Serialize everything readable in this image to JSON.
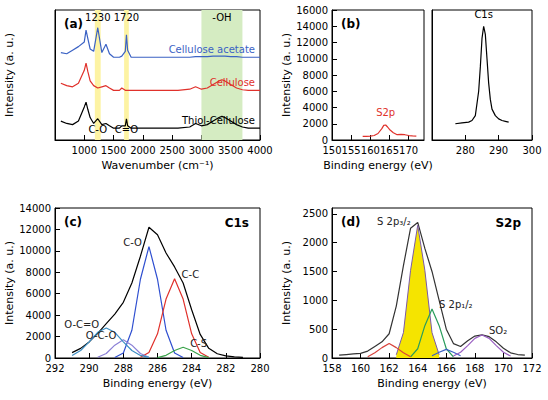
{
  "chart_data": [
    {
      "type": "line",
      "title": "(a)",
      "xlabel": "Wavenumber (cm⁻¹)",
      "ylabel": "Intensity (a. u.)",
      "x": [
        600,
        700,
        800,
        900,
        1000,
        1030,
        1060,
        1100,
        1160,
        1230,
        1300,
        1370,
        1430,
        1500,
        1600,
        1640,
        1700,
        1720,
        1740,
        1800,
        2000,
        2200,
        2400,
        2600,
        2800,
        2900,
        3000,
        3100,
        3200,
        3300,
        3350,
        3400,
        3500,
        3600,
        3700,
        3800,
        3900,
        4000
      ],
      "xlim": [
        500,
        4000
      ],
      "xticks": [
        1000,
        1500,
        2000,
        2500,
        3000,
        3500,
        4000
      ],
      "ylim": [
        0,
        11
      ],
      "tick_labels": "x",
      "grid": false,
      "bands": [
        {
          "from": 1180,
          "to": 1280,
          "label": "1230",
          "bottom_label": "C-O",
          "color": "#fdf3a3"
        },
        {
          "from": 1680,
          "to": 1760,
          "label": "1720",
          "bottom_label": "C=O",
          "color": "#fdf3a3"
        },
        {
          "from": 3000,
          "to": 3700,
          "label": "-OH",
          "color": "#d5ecc2"
        }
      ],
      "series": [
        {
          "name": "Cellulose acetate",
          "color": "#3b62c4",
          "values": [
            7.4,
            7.3,
            7.6,
            7.9,
            8.3,
            9.3,
            8.6,
            7.7,
            7.5,
            9.5,
            7.4,
            8.1,
            7.3,
            7.0,
            7.0,
            7.1,
            7.5,
            8.9,
            7.6,
            7.0,
            7.0,
            7.0,
            7.0,
            7.0,
            7.0,
            7.05,
            7.05,
            7.05,
            7.1,
            7.1,
            7.1,
            7.1,
            7.05,
            7.05,
            7.0,
            7.0,
            7.0,
            7.0
          ]
        },
        {
          "name": "Cellulose",
          "color": "#e0312b",
          "values": [
            4.8,
            4.6,
            4.5,
            4.8,
            5.9,
            6.5,
            5.8,
            5.0,
            4.6,
            4.4,
            4.5,
            4.6,
            4.4,
            4.2,
            4.2,
            4.4,
            4.2,
            4.2,
            4.2,
            4.2,
            4.2,
            4.2,
            4.2,
            4.2,
            4.3,
            4.5,
            4.3,
            4.4,
            4.7,
            5.0,
            5.1,
            5.0,
            4.7,
            4.4,
            4.25,
            4.2,
            4.2,
            4.2
          ]
        },
        {
          "name": "Thiol-Cellulose",
          "color": "#000000",
          "values": [
            1.6,
            1.4,
            1.3,
            1.6,
            2.8,
            3.2,
            2.6,
            1.9,
            1.4,
            1.8,
            1.3,
            1.4,
            1.2,
            1.0,
            1.0,
            1.2,
            1.2,
            1.8,
            1.2,
            1.0,
            1.0,
            1.0,
            1.0,
            1.0,
            1.1,
            1.4,
            1.2,
            1.3,
            1.6,
            1.9,
            2.0,
            1.9,
            1.6,
            1.3,
            1.1,
            1.0,
            1.0,
            1.0
          ]
        }
      ]
    },
    {
      "type": "line",
      "title": "(b)",
      "xlabel": "Binding energy (eV)",
      "ylabel": "Intensity (a. u.)",
      "x": [
        158,
        159,
        160,
        161,
        162,
        163,
        163.5,
        164,
        164.5,
        165,
        166,
        167,
        168,
        169,
        170,
        171,
        172
      ],
      "xlim": [
        150,
        174
      ],
      "xticks": [
        150,
        155,
        160,
        165,
        170
      ],
      "ylim": [
        0,
        16000
      ],
      "yticks": [
        0,
        2000,
        4000,
        6000,
        8000,
        10000,
        12000,
        14000,
        16000
      ],
      "grid": false,
      "series": [
        {
          "name": "S2p",
          "color": "#e0312b",
          "values": [
            450,
            450,
            480,
            550,
            800,
            1400,
            1800,
            1850,
            1600,
            1300,
            900,
            650,
            700,
            650,
            550,
            500,
            480
          ]
        }
      ]
    },
    {
      "type": "line",
      "x": [
        277,
        279,
        281,
        282,
        283,
        284,
        284.5,
        285,
        285.5,
        286,
        286.5,
        287,
        287.5,
        288,
        289,
        290,
        291,
        292,
        293
      ],
      "xlim": [
        270,
        300
      ],
      "xticks": [
        280,
        290,
        300
      ],
      "ylim": [
        0,
        16000
      ],
      "tick_labels": "x",
      "grid": false,
      "series": [
        {
          "name": "C1s",
          "color": "#000000",
          "values": [
            2000,
            2100,
            2200,
            2400,
            3000,
            6000,
            9000,
            12500,
            14000,
            13000,
            10000,
            7000,
            5000,
            3800,
            3000,
            2600,
            2400,
            2300,
            2200
          ]
        }
      ]
    },
    {
      "type": "line",
      "title": "(c)",
      "subtitle": "C1s",
      "xlabel": "Binding energy (eV)",
      "ylabel": "Intensity (a. u.)",
      "x": [
        281,
        281.5,
        282,
        282.5,
        283,
        283.5,
        284,
        284.5,
        285,
        285.5,
        286,
        286.5,
        287,
        287.5,
        288,
        288.5,
        289,
        289.5,
        290,
        290.5,
        291
      ],
      "xlim": [
        292,
        280
      ],
      "xticks": [
        292,
        290,
        288,
        286,
        284,
        282,
        280
      ],
      "ylim": [
        0,
        14000
      ],
      "yticks": [
        0,
        2000,
        4000,
        6000,
        8000,
        10000,
        12000,
        14000
      ],
      "grid": false,
      "series": [
        {
          "color": "#000000",
          "values": [
            50,
            100,
            200,
            400,
            900,
            2200,
            4500,
            7000,
            8500,
            9800,
            11500,
            12200,
            9500,
            7000,
            5200,
            4100,
            3200,
            2300,
            1500,
            900,
            500
          ]
        },
        {
          "name": "C-O",
          "color": "#2f4fd0",
          "values": [
            null,
            null,
            null,
            null,
            null,
            null,
            null,
            40,
            460,
            2590,
            7350,
            10400,
            7350,
            2590,
            460,
            40,
            null,
            null,
            null,
            null,
            null
          ]
        },
        {
          "name": "C-C",
          "color": "#e0312b",
          "values": [
            null,
            null,
            null,
            null,
            65,
            520,
            2260,
            5500,
            7400,
            5500,
            2260,
            520,
            65,
            null,
            null,
            null,
            null,
            null,
            null,
            null,
            null
          ]
        },
        {
          "name": "C-S",
          "color": "#3aa34a",
          "values": [
            null,
            null,
            null,
            null,
            40,
            250,
            700,
            1000,
            700,
            250,
            40,
            null,
            null,
            null,
            null,
            null,
            null,
            null,
            null,
            null,
            null
          ]
        },
        {
          "name": "O-C-O",
          "color": "#8a7fd6",
          "values": [
            null,
            null,
            null,
            null,
            null,
            null,
            null,
            null,
            null,
            null,
            null,
            70,
            420,
            1200,
            1700,
            1200,
            420,
            70,
            null,
            null,
            null
          ]
        },
        {
          "name": "O-C=O",
          "color": "#3d8fc4",
          "values": [
            null,
            null,
            null,
            null,
            null,
            null,
            null,
            null,
            null,
            null,
            null,
            60,
            240,
            700,
            1510,
            2400,
            2800,
            2400,
            1510,
            700,
            240
          ]
        }
      ]
    },
    {
      "type": "line",
      "title": "(d)",
      "subtitle": "S2p",
      "xlabel": "Binding energy (eV)",
      "ylabel": "Intensity (a. u.)",
      "x": [
        158.5,
        159,
        159.5,
        160,
        160.5,
        161,
        161.5,
        162,
        162.5,
        163,
        163.5,
        164,
        164.5,
        165,
        165.5,
        166,
        166.5,
        167,
        167.5,
        168,
        168.5,
        169,
        169.5,
        170,
        170.5,
        171,
        171.5
      ],
      "xlim": [
        158,
        172
      ],
      "xticks": [
        158,
        160,
        162,
        164,
        166,
        168,
        170,
        172
      ],
      "ylim": [
        0,
        2600
      ],
      "yticks": [
        0,
        500,
        1000,
        1500,
        2000,
        2500
      ],
      "grid": false,
      "series": [
        {
          "color": "#333333",
          "values": [
            50,
            60,
            70,
            80,
            120,
            200,
            280,
            420,
            900,
            1600,
            2250,
            2350,
            1900,
            1500,
            1000,
            500,
            250,
            200,
            300,
            380,
            400,
            370,
            280,
            170,
            90,
            60,
            50
          ]
        },
        {
          "name": "S 2p₃/₂",
          "type": "area",
          "color": "#f5e400",
          "values": [
            null,
            null,
            null,
            null,
            null,
            null,
            null,
            null,
            56,
            440,
            1520,
            2300,
            1520,
            440,
            56,
            null,
            null,
            null,
            null,
            null,
            null,
            null,
            null,
            null,
            null,
            null,
            null
          ]
        },
        {
          "name": "S 2p₁/₂",
          "color": "#2a9d5c",
          "values": [
            null,
            null,
            null,
            null,
            null,
            null,
            null,
            null,
            null,
            null,
            20,
            160,
            560,
            850,
            560,
            160,
            20,
            null,
            null,
            null,
            null,
            null,
            null,
            null,
            null,
            null,
            null
          ]
        },
        {
          "color": "#d9433c",
          "values": [
            null,
            null,
            null,
            null,
            20,
            90,
            180,
            250,
            180,
            90,
            20,
            null,
            null,
            null,
            null,
            null,
            null,
            null,
            null,
            null,
            null,
            null,
            null,
            null,
            null,
            null,
            null
          ]
        },
        {
          "color": "#3b62c4",
          "values": [
            null,
            null,
            null,
            null,
            null,
            null,
            null,
            null,
            null,
            null,
            null,
            null,
            null,
            40,
            100,
            150,
            100,
            40,
            null,
            null,
            null,
            null,
            null,
            null,
            null,
            null,
            null
          ]
        },
        {
          "name": "SO₂",
          "color": "#9a5fc2",
          "values": [
            null,
            null,
            null,
            null,
            null,
            null,
            null,
            null,
            null,
            null,
            null,
            null,
            null,
            null,
            null,
            null,
            34,
            100,
            215,
            340,
            400,
            340,
            215,
            100,
            34,
            null,
            null
          ]
        }
      ]
    }
  ]
}
